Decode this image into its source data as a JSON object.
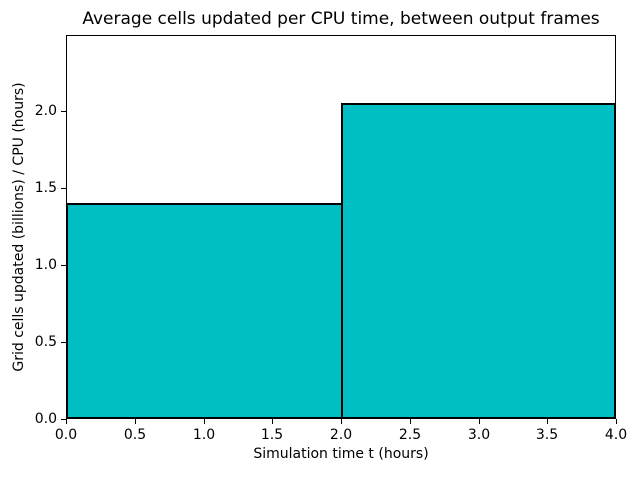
{
  "chart_data": {
    "type": "bar",
    "title": "Average cells updated per CPU time, between output frames",
    "xlabel": "Simulation time t (hours)",
    "ylabel": "Grid cells updated (billions) / CPU (hours)",
    "bins": [
      {
        "x_start": 0.0,
        "x_end": 2.0,
        "value": 1.4
      },
      {
        "x_start": 2.0,
        "x_end": 4.0,
        "value": 2.05
      }
    ],
    "xlim": [
      0.0,
      4.0
    ],
    "ylim": [
      0.0,
      2.49
    ],
    "xticks": [
      0.0,
      0.5,
      1.0,
      1.5,
      2.0,
      2.5,
      3.0,
      3.5,
      4.0
    ],
    "xtick_labels": [
      "0.0",
      "0.5",
      "1.0",
      "1.5",
      "2.0",
      "2.5",
      "3.0",
      "3.5",
      "4.0"
    ],
    "yticks": [
      0.0,
      0.5,
      1.0,
      1.5,
      2.0
    ],
    "ytick_labels": [
      "0.0",
      "0.5",
      "1.0",
      "1.5",
      "2.0"
    ],
    "grid": false,
    "legend": null,
    "colors": {
      "bar_fill": "#00bfc4",
      "bar_edge": "#000000",
      "axes": "#000000",
      "text": "#000000",
      "background": "#ffffff"
    }
  }
}
